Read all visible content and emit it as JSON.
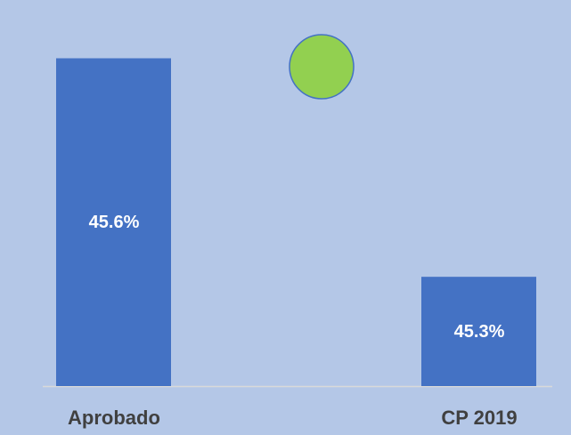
{
  "chart_data": {
    "type": "bar",
    "categories": [
      "Aprobado",
      "CP 2019"
    ],
    "values": [
      45.6,
      45.3
    ],
    "value_labels": [
      "45.6%",
      "45.3%"
    ],
    "color": "#4472c4",
    "ylim": [
      45.15,
      45.68
    ]
  }
}
